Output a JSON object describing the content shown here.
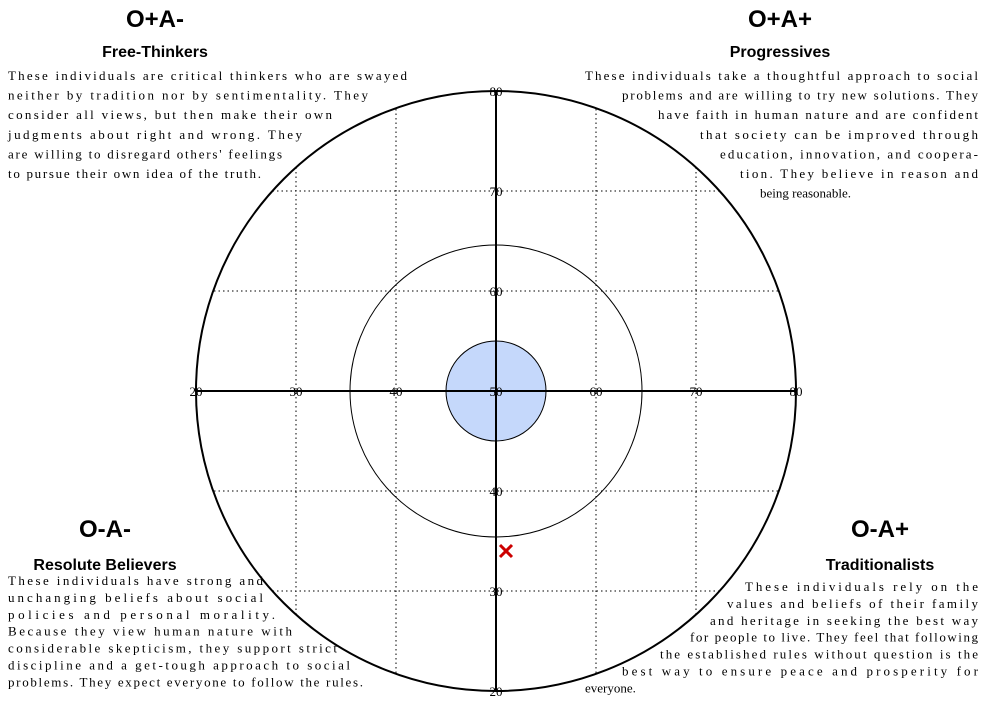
{
  "chart_data": {
    "type": "scatter",
    "xlim": [
      20,
      80
    ],
    "ylim": [
      20,
      80
    ],
    "xticks": [
      20,
      30,
      40,
      50,
      60,
      70,
      80
    ],
    "yticks": [
      20,
      30,
      40,
      60,
      70,
      80
    ],
    "grid": true,
    "x": [
      51
    ],
    "values": [
      34
    ],
    "color": "#cc0000",
    "marker": "x",
    "circles": [
      {
        "radius": 30,
        "color": "none"
      },
      {
        "radius": 14.6,
        "color": "none"
      },
      {
        "radius": 5,
        "color": "#c5d8fb"
      }
    ],
    "quadrants": [
      {
        "title": "O+A-",
        "subtitle": "Free-Thinkers",
        "text": [
          "These individuals are critical thinkers who are swayed",
          "neither by tradition nor by sentimentality. They",
          "consider all views, but then make their own",
          "judgments about right and wrong. They",
          "are willing to disregard others' feelings",
          "to pursue their own idea of the truth."
        ]
      },
      {
        "title": "O+A+",
        "subtitle": "Progressives",
        "text": [
          "These individuals take a thoughtful approach to social",
          "problems and are willing to try new solutions. They",
          "have faith in human nature and are confident",
          "that society can be improved through",
          "education, innovation, and coopera-",
          "tion. They believe in reason and",
          "being reasonable."
        ]
      },
      {
        "title": "O-A-",
        "subtitle": "Resolute Believers",
        "text": [
          "These individuals have strong and",
          "unchanging beliefs about social",
          "policies and personal morality.",
          "Because they view human nature with",
          "considerable skepticism, they support strict",
          "discipline and a get-tough approach to social",
          "problems. They expect everyone to follow the rules."
        ]
      },
      {
        "title": "O-A+",
        "subtitle": "Traditionalists",
        "text": [
          "These individuals rely on the",
          "values and beliefs of their family",
          "and heritage in seeking the best way",
          "for people to live. They feel that following",
          "the established rules without question is the",
          "best way to ensure peace and prosperity for",
          "everyone."
        ]
      }
    ]
  }
}
